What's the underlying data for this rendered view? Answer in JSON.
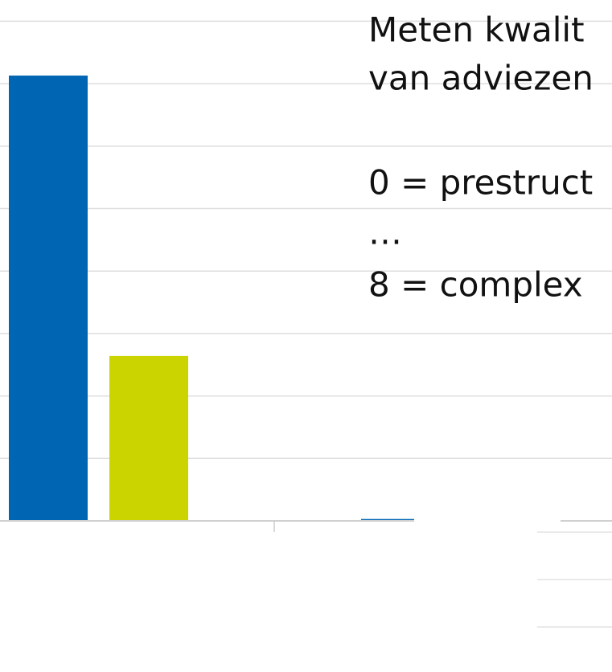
{
  "chart_data": {
    "type": "bar",
    "annotations": [
      "Meten kwalit",
      "van adviezen",
      "0 = prestruct",
      "…",
      "8 = complex"
    ],
    "categories": [
      null,
      null
    ],
    "series": [
      {
        "name": null,
        "color": "#0066b3",
        "values": [
          7.13,
          0.03
        ]
      },
      {
        "name": null,
        "color": "#ccd400",
        "values": [
          2.64,
          null
        ]
      }
    ],
    "ylim": [
      0,
      8.34
    ],
    "yticks": [
      0,
      1,
      2,
      3,
      4,
      5,
      6,
      7,
      8
    ],
    "grid": true
  }
}
